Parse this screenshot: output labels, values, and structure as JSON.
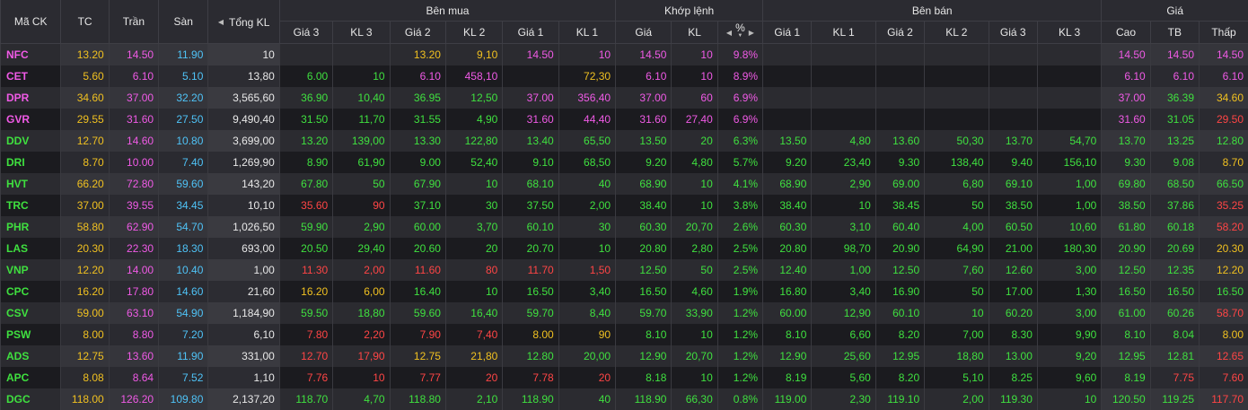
{
  "headers": {
    "symbol": "Mã CK",
    "ref": "TC",
    "ceil": "Trần",
    "floor": "Sàn",
    "total_vol": "Tổng KL",
    "buy_group": "Bên mua",
    "match_group": "Khớp lệnh",
    "sell_group": "Bên bán",
    "price_group": "Giá",
    "buy_cols": [
      "Giá 3",
      "KL 3",
      "Giá 2",
      "KL 2",
      "Giá 1",
      "KL 1"
    ],
    "match_cols": [
      "Giá",
      "KL",
      "%"
    ],
    "sell_cols": [
      "Giá 1",
      "KL 1",
      "Giá 2",
      "KL 2",
      "Giá 3",
      "KL 3"
    ],
    "price_cols": [
      "Cao",
      "TB",
      "Thấp"
    ]
  },
  "icons": {
    "left_arrow": "◀",
    "right_arrow": "▶",
    "sort_down": "▼"
  },
  "colors": {
    "ref": "#f0c020",
    "ceil": "#f05ae6",
    "floor": "#4fc3f7",
    "up": "#3fe03f",
    "down": "#ff4545"
  },
  "rows": [
    {
      "sym": "NFC",
      "ref": "13.20",
      "ceil": "14.50",
      "floor": "11.90",
      "vol": "10",
      "b3p": "",
      "b3v": "",
      "b2p": "13.20",
      "b2v": "9,10",
      "b1p": "14.50",
      "b1v": "10",
      "mp": "14.50",
      "mv": "10",
      "pct": "9.8%",
      "s1p": "",
      "s1v": "",
      "s2p": "",
      "s2v": "",
      "s3p": "",
      "s3v": "",
      "hi": "14.50",
      "avg": "14.50",
      "lo": "14.50",
      "c": {
        "sym": "c-ceil",
        "b2": "c-ref",
        "b1": "c-ceil",
        "m": "c-ceil",
        "hi": "c-ceil",
        "avg": "c-ceil",
        "lo": "c-ceil"
      }
    },
    {
      "sym": "CET",
      "ref": "5.60",
      "ceil": "6.10",
      "floor": "5.10",
      "vol": "13,80",
      "b3p": "6.00",
      "b3v": "10",
      "b2p": "6.10",
      "b2v": "458,10",
      "b1p": "",
      "b1v": "72,30",
      "mp": "6.10",
      "mv": "10",
      "pct": "8.9%",
      "s1p": "",
      "s1v": "",
      "s2p": "",
      "s2v": "",
      "s3p": "",
      "s3v": "",
      "hi": "6.10",
      "avg": "6.10",
      "lo": "6.10",
      "c": {
        "sym": "c-ceil",
        "b3": "c-up",
        "b2": "c-ceil",
        "b1": "c-ref",
        "m": "c-ceil",
        "hi": "c-ceil",
        "avg": "c-ceil",
        "lo": "c-ceil"
      }
    },
    {
      "sym": "DPR",
      "ref": "34.60",
      "ceil": "37.00",
      "floor": "32.20",
      "vol": "3,565,60",
      "b3p": "36.90",
      "b3v": "10,40",
      "b2p": "36.95",
      "b2v": "12,50",
      "b1p": "37.00",
      "b1v": "356,40",
      "mp": "37.00",
      "mv": "60",
      "pct": "6.9%",
      "s1p": "",
      "s1v": "",
      "s2p": "",
      "s2v": "",
      "s3p": "",
      "s3v": "",
      "hi": "37.00",
      "avg": "36.39",
      "lo": "34.60",
      "c": {
        "sym": "c-ceil",
        "b3": "c-up",
        "b2": "c-up",
        "b1": "c-ceil",
        "m": "c-ceil",
        "hi": "c-ceil",
        "avg": "c-up",
        "lo": "c-ref"
      }
    },
    {
      "sym": "GVR",
      "ref": "29.55",
      "ceil": "31.60",
      "floor": "27.50",
      "vol": "9,490,40",
      "b3p": "31.50",
      "b3v": "11,70",
      "b2p": "31.55",
      "b2v": "4,90",
      "b1p": "31.60",
      "b1v": "44,40",
      "mp": "31.60",
      "mv": "27,40",
      "pct": "6.9%",
      "s1p": "",
      "s1v": "",
      "s2p": "",
      "s2v": "",
      "s3p": "",
      "s3v": "",
      "hi": "31.60",
      "avg": "31.05",
      "lo": "29.50",
      "c": {
        "sym": "c-ceil",
        "b3": "c-up",
        "b2": "c-up",
        "b1": "c-ceil",
        "m": "c-ceil",
        "hi": "c-ceil",
        "avg": "c-up",
        "lo": "c-down"
      }
    },
    {
      "sym": "DDV",
      "ref": "12.70",
      "ceil": "14.60",
      "floor": "10.80",
      "vol": "3,699,00",
      "b3p": "13.20",
      "b3v": "139,00",
      "b2p": "13.30",
      "b2v": "122,80",
      "b1p": "13.40",
      "b1v": "65,50",
      "mp": "13.50",
      "mv": "20",
      "pct": "6.3%",
      "s1p": "13.50",
      "s1v": "4,80",
      "s2p": "13.60",
      "s2v": "50,30",
      "s3p": "13.70",
      "s3v": "54,70",
      "hi": "13.70",
      "avg": "13.25",
      "lo": "12.80",
      "c": {
        "sym": "c-up",
        "b3": "c-up",
        "b2": "c-up",
        "b1": "c-up",
        "m": "c-up",
        "s1": "c-up",
        "s2": "c-up",
        "s3": "c-up",
        "hi": "c-up",
        "avg": "c-up",
        "lo": "c-up"
      }
    },
    {
      "sym": "DRI",
      "ref": "8.70",
      "ceil": "10.00",
      "floor": "7.40",
      "vol": "1,269,90",
      "b3p": "8.90",
      "b3v": "61,90",
      "b2p": "9.00",
      "b2v": "52,40",
      "b1p": "9.10",
      "b1v": "68,50",
      "mp": "9.20",
      "mv": "4,80",
      "pct": "5.7%",
      "s1p": "9.20",
      "s1v": "23,40",
      "s2p": "9.30",
      "s2v": "138,40",
      "s3p": "9.40",
      "s3v": "156,10",
      "hi": "9.30",
      "avg": "9.08",
      "lo": "8.70",
      "c": {
        "sym": "c-up",
        "b3": "c-up",
        "b2": "c-up",
        "b1": "c-up",
        "m": "c-up",
        "s1": "c-up",
        "s2": "c-up",
        "s3": "c-up",
        "hi": "c-up",
        "avg": "c-up",
        "lo": "c-ref"
      }
    },
    {
      "sym": "HVT",
      "ref": "66.20",
      "ceil": "72.80",
      "floor": "59.60",
      "vol": "143,20",
      "b3p": "67.80",
      "b3v": "50",
      "b2p": "67.90",
      "b2v": "10",
      "b1p": "68.10",
      "b1v": "40",
      "mp": "68.90",
      "mv": "10",
      "pct": "4.1%",
      "s1p": "68.90",
      "s1v": "2,90",
      "s2p": "69.00",
      "s2v": "6,80",
      "s3p": "69.10",
      "s3v": "1,00",
      "hi": "69.80",
      "avg": "68.50",
      "lo": "66.50",
      "c": {
        "sym": "c-up",
        "b3": "c-up",
        "b2": "c-up",
        "b1": "c-up",
        "m": "c-up",
        "s1": "c-up",
        "s2": "c-up",
        "s3": "c-up",
        "hi": "c-up",
        "avg": "c-up",
        "lo": "c-up"
      }
    },
    {
      "sym": "TRC",
      "ref": "37.00",
      "ceil": "39.55",
      "floor": "34.45",
      "vol": "10,10",
      "b3p": "35.60",
      "b3v": "90",
      "b2p": "37.10",
      "b2v": "30",
      "b1p": "37.50",
      "b1v": "2,00",
      "mp": "38.40",
      "mv": "10",
      "pct": "3.8%",
      "s1p": "38.40",
      "s1v": "10",
      "s2p": "38.45",
      "s2v": "50",
      "s3p": "38.50",
      "s3v": "1,00",
      "hi": "38.50",
      "avg": "37.86",
      "lo": "35.25",
      "c": {
        "sym": "c-up",
        "b3": "c-down",
        "b2": "c-up",
        "b1": "c-up",
        "m": "c-up",
        "s1": "c-up",
        "s2": "c-up",
        "s3": "c-up",
        "hi": "c-up",
        "avg": "c-up",
        "lo": "c-down"
      }
    },
    {
      "sym": "PHR",
      "ref": "58.80",
      "ceil": "62.90",
      "floor": "54.70",
      "vol": "1,026,50",
      "b3p": "59.90",
      "b3v": "2,90",
      "b2p": "60.00",
      "b2v": "3,70",
      "b1p": "60.10",
      "b1v": "30",
      "mp": "60.30",
      "mv": "20,70",
      "pct": "2.6%",
      "s1p": "60.30",
      "s1v": "3,10",
      "s2p": "60.40",
      "s2v": "4,00",
      "s3p": "60.50",
      "s3v": "10,60",
      "hi": "61.80",
      "avg": "60.18",
      "lo": "58.20",
      "c": {
        "sym": "c-up",
        "b3": "c-up",
        "b2": "c-up",
        "b1": "c-up",
        "m": "c-up",
        "s1": "c-up",
        "s2": "c-up",
        "s3": "c-up",
        "hi": "c-up",
        "avg": "c-up",
        "lo": "c-down"
      }
    },
    {
      "sym": "LAS",
      "ref": "20.30",
      "ceil": "22.30",
      "floor": "18.30",
      "vol": "693,00",
      "b3p": "20.50",
      "b3v": "29,40",
      "b2p": "20.60",
      "b2v": "20",
      "b1p": "20.70",
      "b1v": "10",
      "mp": "20.80",
      "mv": "2,80",
      "pct": "2.5%",
      "s1p": "20.80",
      "s1v": "98,70",
      "s2p": "20.90",
      "s2v": "64,90",
      "s3p": "21.00",
      "s3v": "180,30",
      "hi": "20.90",
      "avg": "20.69",
      "lo": "20.30",
      "c": {
        "sym": "c-up",
        "b3": "c-up",
        "b2": "c-up",
        "b1": "c-up",
        "m": "c-up",
        "s1": "c-up",
        "s2": "c-up",
        "s3": "c-up",
        "hi": "c-up",
        "avg": "c-up",
        "lo": "c-ref"
      }
    },
    {
      "sym": "VNP",
      "ref": "12.20",
      "ceil": "14.00",
      "floor": "10.40",
      "vol": "1,00",
      "b3p": "11.30",
      "b3v": "2,00",
      "b2p": "11.60",
      "b2v": "80",
      "b1p": "11.70",
      "b1v": "1,50",
      "mp": "12.50",
      "mv": "50",
      "pct": "2.5%",
      "s1p": "12.40",
      "s1v": "1,00",
      "s2p": "12.50",
      "s2v": "7,60",
      "s3p": "12.60",
      "s3v": "3,00",
      "hi": "12.50",
      "avg": "12.35",
      "lo": "12.20",
      "c": {
        "sym": "c-up",
        "b3": "c-down",
        "b2": "c-down",
        "b1": "c-down",
        "m": "c-up",
        "s1": "c-up",
        "s2": "c-up",
        "s3": "c-up",
        "hi": "c-up",
        "avg": "c-up",
        "lo": "c-ref"
      }
    },
    {
      "sym": "CPC",
      "ref": "16.20",
      "ceil": "17.80",
      "floor": "14.60",
      "vol": "21,60",
      "b3p": "16.20",
      "b3v": "6,00",
      "b2p": "16.40",
      "b2v": "10",
      "b1p": "16.50",
      "b1v": "3,40",
      "mp": "16.50",
      "mv": "4,60",
      "pct": "1.9%",
      "s1p": "16.80",
      "s1v": "3,40",
      "s2p": "16.90",
      "s2v": "50",
      "s3p": "17.00",
      "s3v": "1,30",
      "hi": "16.50",
      "avg": "16.50",
      "lo": "16.50",
      "c": {
        "sym": "c-up",
        "b3": "c-ref",
        "b2": "c-up",
        "b1": "c-up",
        "m": "c-up",
        "s1": "c-up",
        "s2": "c-up",
        "s3": "c-up",
        "hi": "c-up",
        "avg": "c-up",
        "lo": "c-up"
      }
    },
    {
      "sym": "CSV",
      "ref": "59.00",
      "ceil": "63.10",
      "floor": "54.90",
      "vol": "1,184,90",
      "b3p": "59.50",
      "b3v": "18,80",
      "b2p": "59.60",
      "b2v": "16,40",
      "b1p": "59.70",
      "b1v": "8,40",
      "mp": "59.70",
      "mv": "33,90",
      "pct": "1.2%",
      "s1p": "60.00",
      "s1v": "12,90",
      "s2p": "60.10",
      "s2v": "10",
      "s3p": "60.20",
      "s3v": "3,00",
      "hi": "61.00",
      "avg": "60.26",
      "lo": "58.70",
      "c": {
        "sym": "c-up",
        "b3": "c-up",
        "b2": "c-up",
        "b1": "c-up",
        "m": "c-up",
        "s1": "c-up",
        "s2": "c-up",
        "s3": "c-up",
        "hi": "c-up",
        "avg": "c-up",
        "lo": "c-down"
      }
    },
    {
      "sym": "PSW",
      "ref": "8.00",
      "ceil": "8.80",
      "floor": "7.20",
      "vol": "6,10",
      "b3p": "7.80",
      "b3v": "2,20",
      "b2p": "7.90",
      "b2v": "7,40",
      "b1p": "8.00",
      "b1v": "90",
      "mp": "8.10",
      "mv": "10",
      "pct": "1.2%",
      "s1p": "8.10",
      "s1v": "6,60",
      "s2p": "8.20",
      "s2v": "7,00",
      "s3p": "8.30",
      "s3v": "9,90",
      "hi": "8.10",
      "avg": "8.04",
      "lo": "8.00",
      "c": {
        "sym": "c-up",
        "b3": "c-down",
        "b2": "c-down",
        "b1": "c-ref",
        "m": "c-up",
        "s1": "c-up",
        "s2": "c-up",
        "s3": "c-up",
        "hi": "c-up",
        "avg": "c-up",
        "lo": "c-ref"
      }
    },
    {
      "sym": "ADS",
      "ref": "12.75",
      "ceil": "13.60",
      "floor": "11.90",
      "vol": "331,00",
      "b3p": "12.70",
      "b3v": "17,90",
      "b2p": "12.75",
      "b2v": "21,80",
      "b1p": "12.80",
      "b1v": "20,00",
      "mp": "12.90",
      "mv": "20,70",
      "pct": "1.2%",
      "s1p": "12.90",
      "s1v": "25,60",
      "s2p": "12.95",
      "s2v": "18,80",
      "s3p": "13.00",
      "s3v": "9,20",
      "hi": "12.95",
      "avg": "12.81",
      "lo": "12.65",
      "c": {
        "sym": "c-up",
        "b3": "c-down",
        "b2": "c-ref",
        "b1": "c-up",
        "m": "c-up",
        "s1": "c-up",
        "s2": "c-up",
        "s3": "c-up",
        "hi": "c-up",
        "avg": "c-up",
        "lo": "c-down"
      }
    },
    {
      "sym": "APC",
      "ref": "8.08",
      "ceil": "8.64",
      "floor": "7.52",
      "vol": "1,10",
      "b3p": "7.76",
      "b3v": "10",
      "b2p": "7.77",
      "b2v": "20",
      "b1p": "7.78",
      "b1v": "20",
      "mp": "8.18",
      "mv": "10",
      "pct": "1.2%",
      "s1p": "8.19",
      "s1v": "5,60",
      "s2p": "8.20",
      "s2v": "5,10",
      "s3p": "8.25",
      "s3v": "9,60",
      "hi": "8.19",
      "avg": "7.75",
      "lo": "7.60",
      "c": {
        "sym": "c-up",
        "b3": "c-down",
        "b2": "c-down",
        "b1": "c-down",
        "m": "c-up",
        "s1": "c-up",
        "s2": "c-up",
        "s3": "c-up",
        "hi": "c-up",
        "avg": "c-down",
        "lo": "c-down"
      }
    },
    {
      "sym": "DGC",
      "ref": "118.00",
      "ceil": "126.20",
      "floor": "109.80",
      "vol": "2,137,20",
      "b3p": "118.70",
      "b3v": "4,70",
      "b2p": "118.80",
      "b2v": "2,10",
      "b1p": "118.90",
      "b1v": "40",
      "mp": "118.90",
      "mv": "66,30",
      "pct": "0.8%",
      "s1p": "119.00",
      "s1v": "2,30",
      "s2p": "119.10",
      "s2v": "2,00",
      "s3p": "119.30",
      "s3v": "10",
      "hi": "120.50",
      "avg": "119.25",
      "lo": "117.70",
      "c": {
        "sym": "c-up",
        "b3": "c-up",
        "b2": "c-up",
        "b1": "c-up",
        "m": "c-up",
        "s1": "c-up",
        "s2": "c-up",
        "s3": "c-up",
        "hi": "c-up",
        "avg": "c-up",
        "lo": "c-down"
      }
    }
  ]
}
